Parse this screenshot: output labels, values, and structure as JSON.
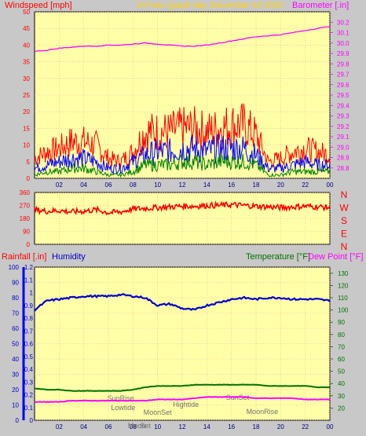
{
  "header": {
    "left_label": "Windspeed [mph]",
    "center_label": "24 hour graph day",
    "date_label": "December 02 2020",
    "right_label": "Barometer [.in]"
  },
  "colors": {
    "background": "#c8c8c8",
    "plot_bg": "#ffffa8",
    "grid": "#e8a8a8",
    "wind_gust": "#ff0000",
    "wind_avg": "#0000ff",
    "wind_low": "#008000",
    "barometer": "#ff00ff",
    "direction": "#ff0000",
    "humidity": "#0000c8",
    "temperature": "#007000",
    "dew_point": "#ff00ff",
    "rainfall": "#0000ff"
  },
  "chart_data": [
    {
      "type": "line",
      "title": "24 hour graph day",
      "ylabel": "Windspeed [mph]",
      "y2label": "Barometer [.in]",
      "x_ticks": [
        "02",
        "04",
        "06",
        "08",
        "10",
        "12",
        "14",
        "16",
        "18",
        "20",
        "22",
        "00"
      ],
      "ylim": [
        0,
        50
      ],
      "y_ticks": [
        0,
        5,
        10,
        15,
        20,
        25,
        30,
        35,
        40,
        45,
        50
      ],
      "y2lim": [
        28.7,
        30.3
      ],
      "y2_ticks": [
        28.8,
        28.9,
        29.0,
        29.1,
        29.2,
        29.3,
        29.4,
        29.5,
        29.6,
        29.7,
        29.8,
        29.9,
        30.0,
        30.1,
        30.2
      ],
      "hours": [
        0,
        1,
        2,
        3,
        4,
        5,
        6,
        7,
        8,
        9,
        10,
        11,
        12,
        13,
        14,
        15,
        16,
        17,
        18,
        19,
        20,
        21,
        22,
        23,
        24
      ],
      "series": [
        {
          "values": [
            6,
            8,
            9,
            11,
            11,
            10,
            6,
            5,
            8,
            14,
            14,
            14,
            15,
            15,
            14,
            15,
            16,
            16,
            13,
            5,
            6,
            8,
            9,
            8,
            7
          ]
        },
        {
          "values": [
            3,
            4,
            5,
            6,
            6,
            5,
            3,
            3,
            5,
            7,
            8,
            8,
            9,
            9,
            8,
            9,
            9,
            9,
            7,
            3,
            3,
            4,
            5,
            4,
            4
          ]
        },
        {
          "values": [
            1,
            2,
            2,
            3,
            3,
            2,
            1,
            1,
            2,
            4,
            4,
            4,
            5,
            5,
            4,
            5,
            5,
            5,
            4,
            1,
            1,
            2,
            2,
            2,
            2
          ]
        },
        {
          "name": "Barometer [.in]",
          "values": [
            29.92,
            29.93,
            29.95,
            29.96,
            29.97,
            29.97,
            29.98,
            29.98,
            29.99,
            30.0,
            29.99,
            29.98,
            29.97,
            29.97,
            29.98,
            30.0,
            30.02,
            30.04,
            30.06,
            30.07,
            30.08,
            30.1,
            30.12,
            30.14,
            30.16
          ]
        }
      ]
    },
    {
      "type": "line",
      "x_ticks": [
        "02",
        "04",
        "06",
        "08",
        "10",
        "12",
        "14",
        "16",
        "18",
        "20",
        "22",
        "00"
      ],
      "ylim": [
        0,
        360
      ],
      "y_ticks": [
        0,
        90,
        180,
        270,
        360
      ],
      "compass_labels": [
        "N",
        "W",
        "S",
        "E",
        "N"
      ],
      "hours": [
        0,
        1,
        2,
        3,
        4,
        5,
        6,
        7,
        8,
        9,
        10,
        11,
        12,
        13,
        14,
        15,
        16,
        17,
        18,
        19,
        20,
        21,
        22,
        23,
        24
      ],
      "series": [
        {
          "values": [
            240,
            230,
            235,
            225,
            230,
            240,
            220,
            225,
            245,
            250,
            255,
            260,
            265,
            265,
            270,
            270,
            275,
            270,
            265,
            260,
            255,
            260,
            265,
            260,
            255
          ]
        }
      ]
    },
    {
      "type": "line",
      "ylabel": "Rainfall [.in]",
      "y1label2": "Humidity",
      "y2label": "Temperature [°F]",
      "y2label2": "Dew Point [°F]",
      "x_ticks": [
        "02",
        "04",
        "06",
        "08",
        "10",
        "12",
        "14",
        "16",
        "18",
        "20",
        "22",
        "00"
      ],
      "rain_lim": [
        0,
        1.2
      ],
      "rain_ticks": [
        0,
        0.1,
        0.2,
        0.3,
        0.4,
        0.5,
        0.6,
        0.7,
        0.8,
        0.9,
        1,
        1.1,
        1.2
      ],
      "humidity_lim": [
        0,
        100
      ],
      "humidity_ticks": [
        0,
        10,
        20,
        30,
        40,
        50,
        60,
        70,
        80,
        90,
        100
      ],
      "temp_lim": [
        10,
        135
      ],
      "temp_ticks": [
        20,
        30,
        40,
        50,
        60,
        70,
        80,
        90,
        100,
        110,
        120,
        130
      ],
      "events": [
        {
          "label": "SunRise",
          "hour": 7.0
        },
        {
          "label": "Lowtide",
          "hour": 7.2
        },
        {
          "label": "MoonSet",
          "hour": 10.0
        },
        {
          "label": "Moon",
          "hour": 8.3
        },
        {
          "label": "Set",
          "hour": 9.0
        },
        {
          "label": "Hightide",
          "hour": 12.3
        },
        {
          "label": "SunSet",
          "hour": 16.5
        },
        {
          "label": "MoonRise",
          "hour": 18.5
        }
      ],
      "hours": [
        0,
        1,
        2,
        3,
        4,
        5,
        6,
        7,
        8,
        9,
        10,
        11,
        12,
        13,
        14,
        15,
        16,
        17,
        18,
        19,
        20,
        21,
        22,
        23,
        24
      ],
      "series": [
        {
          "name": "Humidity",
          "values": [
            72,
            78,
            79,
            80,
            81,
            81,
            81,
            82,
            81,
            80,
            75,
            76,
            73,
            72,
            75,
            77,
            79,
            80,
            79,
            80,
            80,
            79,
            79,
            79,
            78
          ]
        },
        {
          "name": "Temperature [°F]",
          "values": [
            36,
            35,
            35,
            34,
            34,
            34,
            34,
            34,
            35,
            37,
            38,
            38,
            38,
            39,
            39,
            39,
            39,
            39,
            39,
            38,
            38,
            38,
            38,
            37,
            37
          ]
        },
        {
          "name": "Dew Point [°F]",
          "values": [
            25,
            25,
            25,
            26,
            26,
            26,
            26,
            26,
            26,
            26,
            27,
            27,
            27,
            28,
            29,
            29,
            29,
            29,
            28,
            28,
            28,
            28,
            27,
            27,
            27
          ]
        }
      ]
    }
  ]
}
